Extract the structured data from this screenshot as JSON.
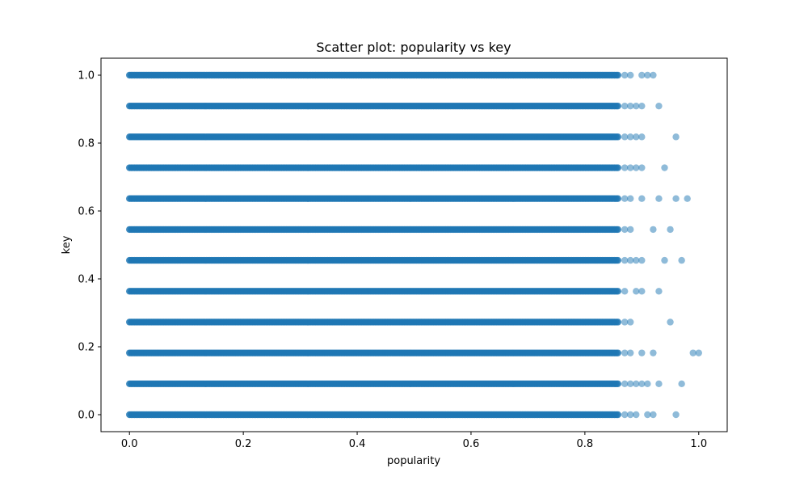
{
  "chart_data": {
    "type": "scatter",
    "title": "Scatter plot: popularity vs key",
    "xlabel": "popularity",
    "ylabel": "key",
    "xlim": [
      -0.05,
      1.05
    ],
    "ylim": [
      -0.05,
      1.05
    ],
    "xticks": [
      0.0,
      0.2,
      0.4,
      0.6,
      0.8,
      1.0
    ],
    "yticks": [
      0.0,
      0.2,
      0.4,
      0.6,
      0.8,
      1.0
    ],
    "xtick_labels": [
      "0.0",
      "0.2",
      "0.4",
      "0.6",
      "0.8",
      "1.0"
    ],
    "ytick_labels": [
      "0.0",
      "0.2",
      "0.4",
      "0.6",
      "0.8",
      "1.0"
    ],
    "grid": false,
    "marker_color": "#1f77b4",
    "marker_alpha": 0.5,
    "dense_range": [
      0.0,
      0.86
    ],
    "rows": [
      {
        "key": 0.0,
        "outliers": [
          0.87,
          0.88,
          0.89,
          0.91,
          0.92,
          0.96
        ]
      },
      {
        "key": 0.0909,
        "outliers": [
          0.87,
          0.88,
          0.89,
          0.9,
          0.91,
          0.93,
          0.97
        ]
      },
      {
        "key": 0.1818,
        "outliers": [
          0.87,
          0.88,
          0.9,
          0.92,
          0.99,
          1.0
        ]
      },
      {
        "key": 0.2727,
        "outliers": [
          0.87,
          0.88,
          0.95
        ]
      },
      {
        "key": 0.3636,
        "outliers": [
          0.87,
          0.89,
          0.9,
          0.93
        ]
      },
      {
        "key": 0.4545,
        "outliers": [
          0.87,
          0.88,
          0.89,
          0.9,
          0.94,
          0.97
        ]
      },
      {
        "key": 0.5455,
        "outliers": [
          0.87,
          0.88,
          0.92,
          0.95
        ]
      },
      {
        "key": 0.6364,
        "outliers": [
          0.87,
          0.88,
          0.9,
          0.93,
          0.96,
          0.98
        ]
      },
      {
        "key": 0.7273,
        "outliers": [
          0.87,
          0.88,
          0.89,
          0.9,
          0.94
        ]
      },
      {
        "key": 0.8182,
        "outliers": [
          0.87,
          0.88,
          0.89,
          0.9,
          0.96
        ]
      },
      {
        "key": 0.9091,
        "outliers": [
          0.87,
          0.88,
          0.89,
          0.9,
          0.93
        ]
      },
      {
        "key": 1.0,
        "outliers": [
          0.87,
          0.88,
          0.9,
          0.91,
          0.92
        ]
      }
    ]
  }
}
